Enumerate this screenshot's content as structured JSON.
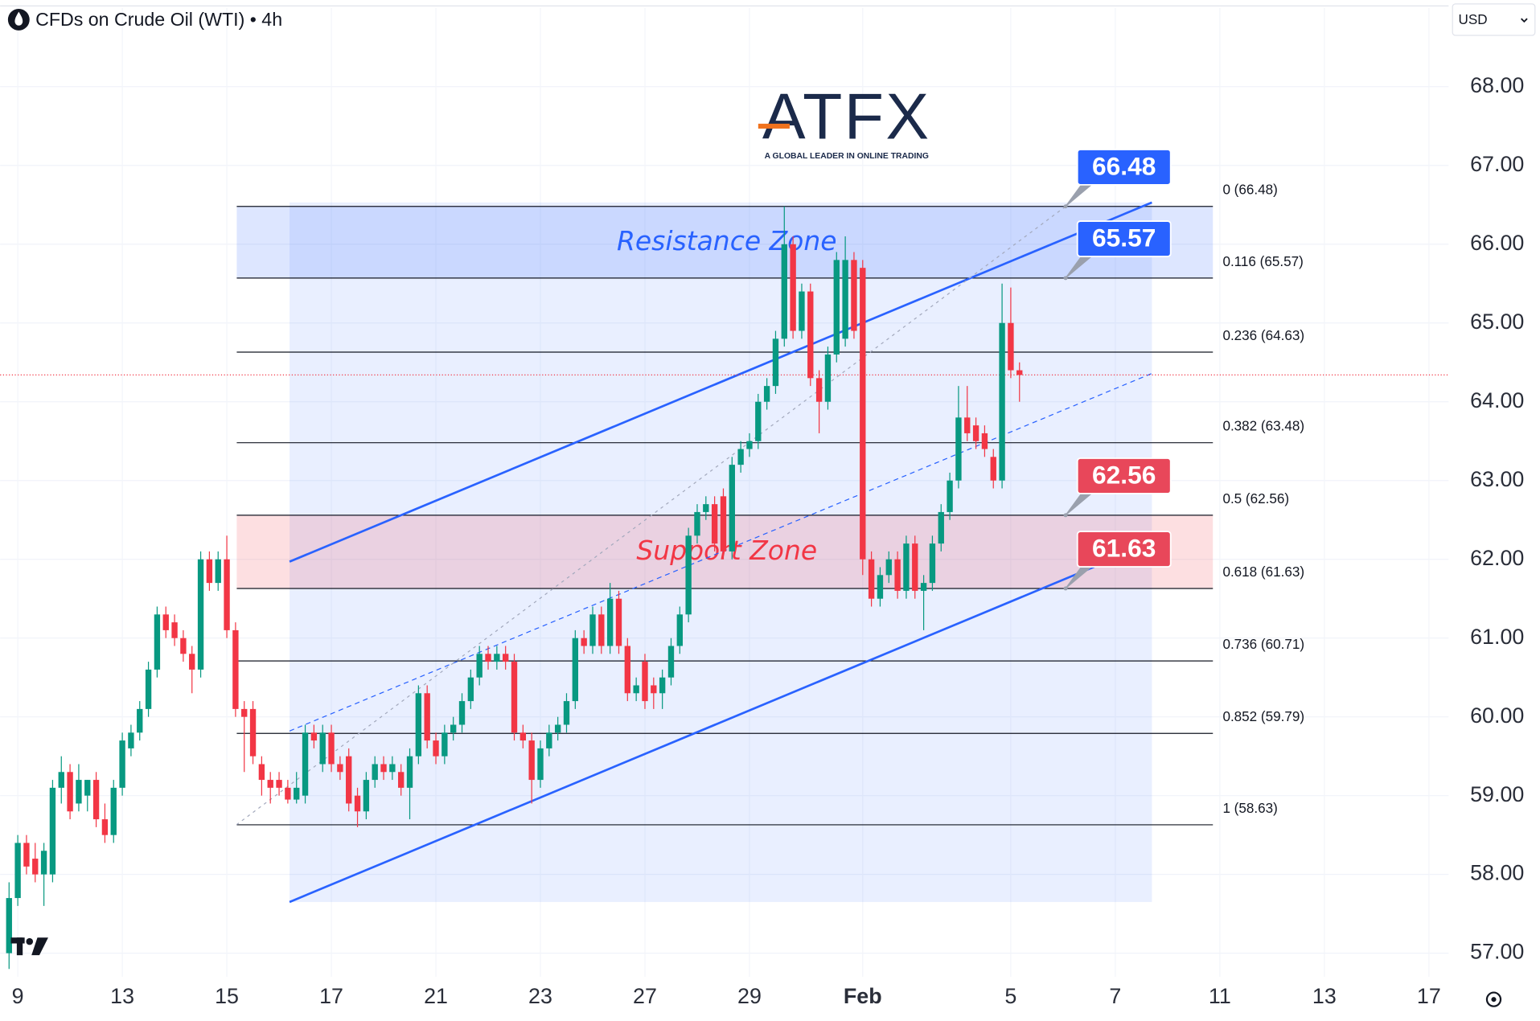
{
  "header": {
    "symbol_title": "CFDs on Crude Oil (WTI) • 4h",
    "currency": "USD"
  },
  "logo": {
    "name": "ATFX",
    "tagline": "A GLOBAL LEADER IN ONLINE TRADING"
  },
  "chart_data": {
    "type": "candlestick",
    "x": [
      -1,
      0,
      1,
      2,
      3,
      4,
      5,
      6,
      7,
      8,
      9,
      10,
      11,
      12,
      13,
      14,
      15,
      16,
      17,
      18,
      19,
      20,
      21,
      22,
      23,
      24,
      25,
      26,
      27,
      28,
      29,
      30,
      31,
      32,
      33,
      34,
      35,
      36,
      37,
      38,
      39,
      40,
      41,
      42,
      43,
      44,
      45,
      46,
      47,
      48,
      49,
      50,
      51,
      52,
      53,
      54,
      55,
      56,
      57,
      58,
      59,
      60,
      61,
      62,
      63,
      64,
      65,
      66,
      67,
      68,
      69,
      70,
      71,
      72,
      73,
      74,
      75,
      76,
      77,
      78,
      79,
      80,
      81,
      82,
      83,
      84,
      85,
      86,
      87,
      88,
      89,
      90,
      91,
      92,
      93,
      94,
      95,
      96,
      97,
      98,
      99,
      100,
      101,
      102,
      103,
      104,
      105,
      106,
      107,
      108,
      109,
      110,
      111,
      112,
      113,
      114,
      115
    ],
    "ohlc": [
      [
        57.0,
        57.9,
        56.8,
        57.7
      ],
      [
        57.7,
        58.5,
        57.6,
        58.4
      ],
      [
        58.4,
        58.5,
        58.0,
        58.1
      ],
      [
        58.2,
        58.4,
        57.9,
        58.0
      ],
      [
        58.0,
        58.4,
        57.6,
        58.3
      ],
      [
        58.0,
        59.2,
        57.9,
        59.1
      ],
      [
        59.1,
        59.5,
        58.9,
        59.3
      ],
      [
        59.3,
        59.4,
        58.7,
        58.8
      ],
      [
        58.9,
        59.4,
        58.8,
        59.2
      ],
      [
        59.0,
        59.2,
        58.8,
        59.2
      ],
      [
        59.2,
        59.3,
        58.6,
        58.7
      ],
      [
        58.7,
        58.9,
        58.4,
        58.5
      ],
      [
        58.5,
        59.2,
        58.4,
        59.1
      ],
      [
        59.1,
        59.8,
        59.0,
        59.7
      ],
      [
        59.6,
        59.9,
        59.5,
        59.8
      ],
      [
        59.8,
        60.2,
        59.7,
        60.1
      ],
      [
        60.1,
        60.7,
        60.0,
        60.6
      ],
      [
        60.6,
        61.4,
        60.5,
        61.3
      ],
      [
        61.3,
        61.4,
        61.0,
        61.1
      ],
      [
        61.2,
        61.3,
        60.9,
        61.0
      ],
      [
        61.0,
        61.1,
        60.7,
        60.8
      ],
      [
        60.8,
        60.9,
        60.3,
        60.6
      ],
      [
        60.6,
        62.1,
        60.5,
        62.0
      ],
      [
        62.0,
        62.1,
        61.6,
        61.7
      ],
      [
        61.7,
        62.1,
        61.6,
        62.0
      ],
      [
        62.0,
        62.3,
        61.0,
        61.1
      ],
      [
        61.1,
        61.2,
        60.0,
        60.1
      ],
      [
        60.1,
        60.2,
        59.3,
        60.0
      ],
      [
        60.1,
        60.2,
        59.4,
        59.5
      ],
      [
        59.4,
        59.5,
        59.0,
        59.2
      ],
      [
        59.2,
        59.3,
        58.9,
        59.1
      ],
      [
        59.2,
        59.3,
        59.0,
        59.1
      ],
      [
        59.1,
        59.2,
        58.9,
        58.95
      ],
      [
        58.95,
        59.3,
        58.9,
        59.1
      ],
      [
        59.0,
        59.9,
        58.9,
        59.8
      ],
      [
        59.8,
        59.9,
        59.6,
        59.7
      ],
      [
        59.4,
        59.9,
        59.3,
        59.8
      ],
      [
        59.8,
        59.9,
        59.3,
        59.4
      ],
      [
        59.4,
        59.5,
        59.2,
        59.3
      ],
      [
        59.5,
        59.6,
        58.8,
        58.9
      ],
      [
        59.0,
        59.1,
        58.6,
        58.8
      ],
      [
        58.8,
        59.3,
        58.7,
        59.2
      ],
      [
        59.2,
        59.5,
        59.1,
        59.4
      ],
      [
        59.4,
        59.5,
        59.2,
        59.3
      ],
      [
        59.3,
        59.5,
        59.2,
        59.4
      ],
      [
        59.3,
        59.4,
        59.0,
        59.1
      ],
      [
        59.1,
        59.6,
        58.7,
        59.5
      ],
      [
        59.5,
        60.4,
        59.4,
        60.3
      ],
      [
        60.3,
        60.4,
        59.6,
        59.7
      ],
      [
        59.7,
        59.8,
        59.4,
        59.5
      ],
      [
        59.5,
        59.9,
        59.4,
        59.8
      ],
      [
        59.8,
        60.0,
        59.7,
        59.9
      ],
      [
        59.9,
        60.3,
        59.8,
        60.2
      ],
      [
        60.2,
        60.6,
        60.1,
        60.5
      ],
      [
        60.5,
        60.9,
        60.4,
        60.8
      ],
      [
        60.8,
        60.9,
        60.6,
        60.7
      ],
      [
        60.7,
        60.9,
        60.6,
        60.8
      ],
      [
        60.8,
        60.9,
        60.6,
        60.7
      ],
      [
        60.7,
        60.8,
        59.7,
        59.8
      ],
      [
        59.8,
        59.9,
        59.6,
        59.7
      ],
      [
        59.7,
        59.8,
        58.9,
        59.2
      ],
      [
        59.2,
        59.7,
        59.1,
        59.6
      ],
      [
        59.6,
        59.9,
        59.5,
        59.8
      ],
      [
        59.8,
        60.0,
        59.7,
        59.9
      ],
      [
        59.9,
        60.3,
        59.8,
        60.2
      ],
      [
        60.2,
        61.1,
        60.1,
        61.0
      ],
      [
        61.0,
        61.1,
        60.8,
        60.9
      ],
      [
        60.9,
        61.4,
        60.8,
        61.3
      ],
      [
        61.3,
        61.4,
        60.8,
        60.9
      ],
      [
        60.9,
        61.7,
        60.8,
        61.5
      ],
      [
        61.5,
        61.6,
        60.8,
        60.9
      ],
      [
        60.9,
        61.0,
        60.2,
        60.3
      ],
      [
        60.3,
        60.5,
        60.2,
        60.4
      ],
      [
        60.7,
        60.8,
        60.1,
        60.2
      ],
      [
        60.4,
        60.5,
        60.1,
        60.3
      ],
      [
        60.3,
        60.6,
        60.1,
        60.5
      ],
      [
        60.5,
        61.0,
        60.4,
        60.9
      ],
      [
        60.9,
        61.4,
        60.8,
        61.3
      ],
      [
        61.3,
        62.4,
        61.2,
        62.3
      ],
      [
        62.3,
        62.7,
        62.2,
        62.6
      ],
      [
        62.6,
        62.8,
        62.5,
        62.7
      ],
      [
        62.7,
        62.8,
        62.1,
        62.2
      ],
      [
        62.8,
        62.9,
        62.0,
        62.1
      ],
      [
        62.1,
        63.3,
        62.0,
        63.2
      ],
      [
        63.2,
        63.5,
        63.1,
        63.4
      ],
      [
        63.4,
        63.6,
        63.3,
        63.5
      ],
      [
        63.5,
        64.1,
        63.4,
        64.0
      ],
      [
        64.0,
        64.3,
        63.9,
        64.2
      ],
      [
        64.2,
        64.9,
        64.1,
        64.8
      ],
      [
        64.8,
        66.48,
        64.7,
        66.0
      ],
      [
        66.0,
        66.1,
        64.8,
        64.9
      ],
      [
        64.9,
        65.5,
        64.8,
        65.4
      ],
      [
        65.4,
        65.5,
        64.2,
        64.3
      ],
      [
        64.3,
        64.4,
        63.6,
        64.0
      ],
      [
        64.0,
        64.7,
        63.9,
        64.6
      ],
      [
        64.6,
        65.9,
        64.5,
        65.8
      ],
      [
        64.8,
        66.1,
        64.7,
        65.8
      ],
      [
        65.8,
        65.9,
        64.8,
        64.9
      ],
      [
        65.7,
        65.8,
        61.8,
        62.0
      ],
      [
        62.0,
        62.1,
        61.4,
        61.5
      ],
      [
        61.5,
        61.9,
        61.4,
        61.8
      ],
      [
        61.8,
        62.1,
        61.7,
        62.0
      ],
      [
        62.0,
        62.1,
        61.5,
        61.6
      ],
      [
        61.6,
        62.3,
        61.5,
        62.2
      ],
      [
        62.2,
        62.3,
        61.5,
        61.6
      ],
      [
        61.6,
        61.8,
        61.1,
        61.7
      ],
      [
        61.7,
        62.3,
        61.6,
        62.2
      ],
      [
        62.2,
        62.7,
        62.1,
        62.6
      ],
      [
        62.6,
        63.1,
        62.5,
        63.0
      ],
      [
        63.0,
        64.2,
        62.9,
        63.8
      ],
      [
        63.8,
        64.2,
        63.5,
        63.6
      ],
      [
        63.7,
        63.8,
        63.4,
        63.5
      ],
      [
        63.6,
        63.7,
        63.3,
        63.4
      ],
      [
        63.3,
        63.4,
        62.9,
        63.0
      ],
      [
        63.0,
        65.5,
        62.9,
        65.0
      ],
      [
        65.0,
        65.45,
        64.3,
        64.4
      ],
      [
        64.4,
        64.5,
        64.0,
        64.34
      ]
    ],
    "up_color": "#089981",
    "down_color": "#f23645",
    "xlim": [
      -2.03,
      164.26
    ],
    "xticks": [
      {
        "value": 0,
        "label": "9"
      },
      {
        "value": 12,
        "label": "13"
      },
      {
        "value": 24,
        "label": "15"
      },
      {
        "value": 36,
        "label": "17"
      },
      {
        "value": 48,
        "label": "21"
      },
      {
        "value": 60,
        "label": "23"
      },
      {
        "value": 72,
        "label": "27"
      },
      {
        "value": 84,
        "label": "29"
      },
      {
        "value": 97,
        "label": "Feb"
      },
      {
        "value": 114,
        "label": "5"
      },
      {
        "value": 126,
        "label": "7"
      },
      {
        "value": 138,
        "label": "11"
      },
      {
        "value": 150,
        "label": "13"
      },
      {
        "value": 162,
        "label": "17"
      }
    ],
    "ylim": [
      56.7,
      69.1
    ],
    "yticks": [
      {
        "value": 57,
        "label": "57.00"
      },
      {
        "value": 58,
        "label": "58.00"
      },
      {
        "value": 59,
        "label": "59.00"
      },
      {
        "value": 60,
        "label": "60.00"
      },
      {
        "value": 61,
        "label": "61.00"
      },
      {
        "value": 62,
        "label": "62.00"
      },
      {
        "value": 63,
        "label": "63.00"
      },
      {
        "value": 64,
        "label": "64.00"
      },
      {
        "value": 65,
        "label": "65.00"
      },
      {
        "value": 66,
        "label": "66.00"
      },
      {
        "value": 67,
        "label": "67.00"
      },
      {
        "value": 68,
        "label": "68.00"
      }
    ],
    "grid": true,
    "current_price": 64.34,
    "fib_levels": [
      {
        "value": 66.48,
        "label": "0 (66.48)"
      },
      {
        "value": 65.57,
        "label": "0.116 (65.57)"
      },
      {
        "value": 64.63,
        "label": "0.236 (64.63)"
      },
      {
        "value": 63.48,
        "label": "0.382 (63.48)"
      },
      {
        "value": 62.56,
        "label": "0.5 (62.56)"
      },
      {
        "value": 61.63,
        "label": "0.618 (61.63)"
      },
      {
        "value": 60.71,
        "label": "0.736 (60.71)"
      },
      {
        "value": 59.79,
        "label": "0.852 (59.79)"
      },
      {
        "value": 58.63,
        "label": "1 (58.63)"
      }
    ],
    "zones": [
      {
        "name": "Resistance Zone",
        "from": 65.57,
        "to": 66.48,
        "color": "#2962ff"
      },
      {
        "name": "Support Zone",
        "from": 61.63,
        "to": 62.56,
        "color": "#f23645"
      }
    ],
    "price_callouts": [
      {
        "value": 66.48,
        "color": "#2962ff"
      },
      {
        "value": 65.57,
        "color": "#2962ff"
      },
      {
        "value": 62.56,
        "color": "#e8475a"
      },
      {
        "value": 61.63,
        "color": "#e8475a"
      }
    ],
    "trendlines": [
      {
        "x": [
          31.2,
          130.2
        ],
        "y": [
          61.97,
          66.53
        ],
        "style": "solid",
        "color": "#2962ff"
      },
      {
        "x": [
          31.2,
          130.2
        ],
        "y": [
          57.65,
          62.21
        ],
        "style": "solid",
        "color": "#2962ff"
      },
      {
        "x": [
          31.2,
          130.2
        ],
        "y": [
          59.82,
          64.36
        ],
        "style": "dashed",
        "color": "#2962ff"
      },
      {
        "x": [
          25.1,
          120.3
        ],
        "y": [
          58.63,
          66.48
        ],
        "style": "dotted",
        "color": "#a3a9bd"
      }
    ]
  }
}
